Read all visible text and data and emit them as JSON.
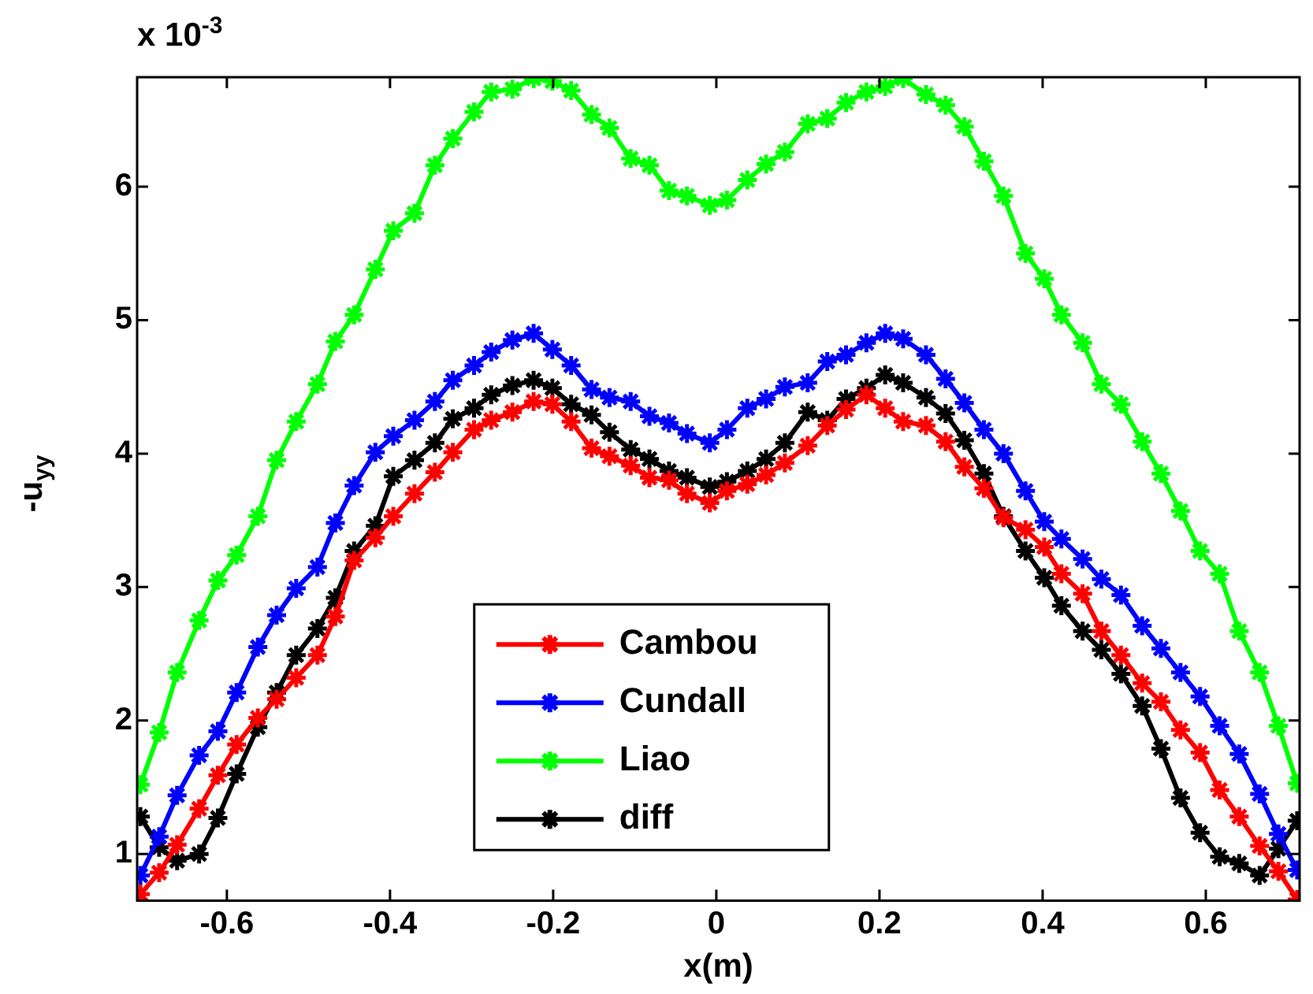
{
  "chart_data": {
    "type": "line",
    "xlabel": "x(m)",
    "ylabel": "-u$_{yy}$",
    "annotations": [
      "x 10$^{-3}$"
    ],
    "x": [
      -0.706,
      -0.683,
      -0.661,
      -0.634,
      -0.611,
      -0.588,
      -0.562,
      -0.539,
      -0.515,
      -0.489,
      -0.467,
      -0.444,
      -0.418,
      -0.396,
      -0.37,
      -0.345,
      -0.323,
      -0.297,
      -0.276,
      -0.25,
      -0.224,
      -0.201,
      -0.178,
      -0.153,
      -0.131,
      -0.105,
      -0.082,
      -0.058,
      -0.036,
      -0.008,
      0.013,
      0.038,
      0.061,
      0.084,
      0.112,
      0.136,
      0.159,
      0.184,
      0.207,
      0.229,
      0.257,
      0.281,
      0.304,
      0.328,
      0.352,
      0.379,
      0.402,
      0.423,
      0.449,
      0.472,
      0.496,
      0.522,
      0.545,
      0.569,
      0.593,
      0.617,
      0.641,
      0.666,
      0.689,
      0.712
    ],
    "series": [
      {
        "name": "Cambou",
        "color": "#ff0000",
        "values": [
          0.7,
          0.86,
          1.07,
          1.34,
          1.59,
          1.82,
          2.02,
          2.16,
          2.32,
          2.49,
          2.78,
          3.2,
          3.37,
          3.53,
          3.7,
          3.86,
          4.01,
          4.18,
          4.25,
          4.31,
          4.39,
          4.37,
          4.24,
          4.04,
          3.98,
          3.91,
          3.82,
          3.8,
          3.7,
          3.63,
          3.72,
          3.77,
          3.84,
          3.93,
          4.06,
          4.21,
          4.33,
          4.44,
          4.34,
          4.24,
          4.21,
          4.09,
          3.9,
          3.74,
          3.52,
          3.43,
          3.3,
          3.1,
          2.95,
          2.67,
          2.49,
          2.28,
          2.14,
          1.93,
          1.76,
          1.48,
          1.28,
          1.06,
          0.87,
          0.66
        ]
      },
      {
        "name": "Cundall",
        "color": "#0000ff",
        "values": [
          0.84,
          1.13,
          1.44,
          1.74,
          1.92,
          2.21,
          2.55,
          2.79,
          2.99,
          3.15,
          3.48,
          3.76,
          4.01,
          4.13,
          4.25,
          4.39,
          4.55,
          4.66,
          4.76,
          4.85,
          4.9,
          4.78,
          4.66,
          4.48,
          4.42,
          4.39,
          4.28,
          4.23,
          4.15,
          4.08,
          4.18,
          4.34,
          4.41,
          4.5,
          4.53,
          4.69,
          4.74,
          4.83,
          4.9,
          4.86,
          4.74,
          4.56,
          4.38,
          4.18,
          4.0,
          3.72,
          3.49,
          3.36,
          3.21,
          3.06,
          2.94,
          2.71,
          2.54,
          2.36,
          2.18,
          1.96,
          1.75,
          1.45,
          1.15,
          0.88
        ]
      },
      {
        "name": "Liao",
        "color": "#00ff00",
        "values": [
          1.52,
          1.91,
          2.36,
          2.75,
          3.05,
          3.24,
          3.53,
          3.95,
          4.24,
          4.52,
          4.84,
          5.04,
          5.38,
          5.67,
          5.8,
          6.16,
          6.36,
          6.56,
          6.71,
          6.73,
          6.81,
          6.79,
          6.72,
          6.54,
          6.44,
          6.21,
          6.16,
          5.97,
          5.93,
          5.86,
          5.9,
          6.05,
          6.17,
          6.26,
          6.47,
          6.51,
          6.63,
          6.71,
          6.75,
          6.81,
          6.69,
          6.61,
          6.45,
          6.19,
          5.93,
          5.5,
          5.31,
          5.04,
          4.83,
          4.52,
          4.37,
          4.09,
          3.85,
          3.57,
          3.27,
          3.1,
          2.67,
          2.36,
          1.96,
          1.53
        ]
      },
      {
        "name": "diff",
        "color": "#000000",
        "values": [
          1.28,
          1.05,
          0.95,
          1.0,
          1.27,
          1.6,
          1.95,
          2.21,
          2.49,
          2.69,
          2.92,
          3.27,
          3.46,
          3.83,
          3.95,
          4.08,
          4.26,
          4.34,
          4.44,
          4.51,
          4.55,
          4.49,
          4.37,
          4.29,
          4.16,
          4.03,
          3.96,
          3.87,
          3.82,
          3.75,
          3.79,
          3.87,
          3.96,
          4.08,
          4.31,
          4.25,
          4.41,
          4.49,
          4.59,
          4.53,
          4.42,
          4.3,
          4.1,
          3.85,
          3.53,
          3.27,
          3.07,
          2.86,
          2.67,
          2.53,
          2.35,
          2.11,
          1.79,
          1.42,
          1.16,
          0.98,
          0.93,
          0.84,
          1.04,
          1.25
        ]
      }
    ],
    "xlim": [
      -0.71,
      0.715
    ],
    "ylim": [
      0.65,
      6.82
    ],
    "xticks": [
      -0.6,
      -0.4,
      -0.2,
      0,
      0.2,
      0.4,
      0.6
    ],
    "yticks": [
      1,
      2,
      3,
      4,
      5,
      6
    ],
    "grid": false,
    "legend": "bottom",
    "marker": "cross",
    "line_style": "solid"
  }
}
